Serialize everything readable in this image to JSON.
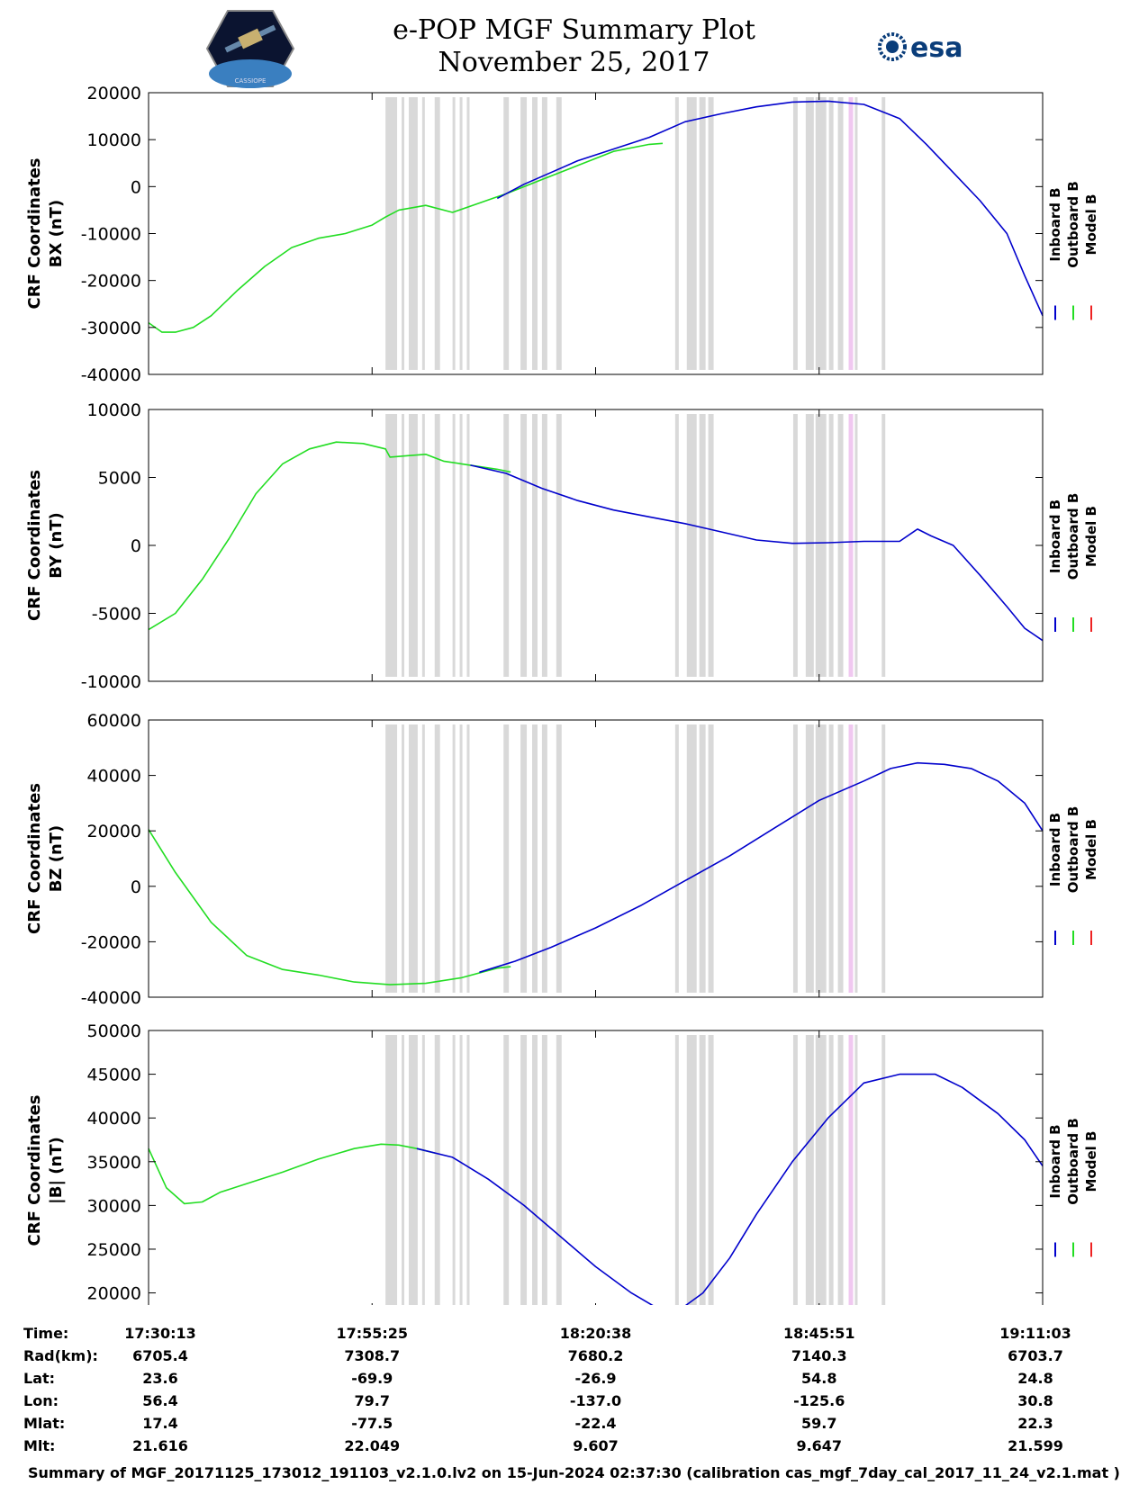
{
  "header": {
    "title_line1": "e-POP MGF Summary Plot",
    "title_line2": "November 25, 2017",
    "left_logo_text": "CASSIOPE",
    "right_logo_text": "esa"
  },
  "colors": {
    "inboard": "#0000cc",
    "outboard": "#22dd22",
    "model": "#ee2222",
    "gap_band": "#d9d9d9",
    "pink_band": "#f0c8f0"
  },
  "legend": [
    "Inboard B",
    "Outboard B",
    "Model B"
  ],
  "chart_data": [
    {
      "type": "line",
      "ylabel_line1": "CRF Coordinates",
      "ylabel_line2": "BX (nT)",
      "ylim": [
        -40000,
        20000
      ],
      "yticks": [
        20000,
        10000,
        0,
        -10000,
        -20000,
        -30000,
        -40000
      ],
      "xlim": [
        0,
        100
      ],
      "series": [
        {
          "name": "Outboard B",
          "x": [
            0,
            1.5,
            3,
            5,
            7,
            10,
            13,
            16,
            19,
            22,
            25,
            26.5,
            28,
            31,
            34,
            37,
            38.5,
            40,
            44,
            48,
            52,
            56,
            57.5
          ],
          "values": [
            -29000,
            -31000,
            -31000,
            -30000,
            -27500,
            -22000,
            -17000,
            -13000,
            -11000,
            -10000,
            -8200,
            -6500,
            -5000,
            -4000,
            -5500,
            -3500,
            -2500,
            -1500,
            1500,
            4500,
            7500,
            9000,
            9200
          ]
        },
        {
          "name": "Inboard B",
          "x": [
            39,
            42,
            45,
            48,
            52,
            56,
            60,
            64,
            68,
            72,
            76,
            80,
            84,
            87,
            90,
            93,
            96,
            98,
            100
          ],
          "values": [
            -2500,
            500,
            3000,
            5500,
            8000,
            10500,
            13800,
            15500,
            17000,
            18000,
            18200,
            17500,
            14500,
            9000,
            3000,
            -3000,
            -10000,
            -19000,
            -27500
          ]
        },
        {
          "name": "Model B",
          "x": [],
          "values": []
        }
      ]
    },
    {
      "type": "line",
      "ylabel_line1": "CRF Coordinates",
      "ylabel_line2": "BY (nT)",
      "ylim": [
        -10000,
        10000
      ],
      "yticks": [
        10000,
        5000,
        0,
        -5000,
        -10000
      ],
      "xlim": [
        0,
        100
      ],
      "series": [
        {
          "name": "Outboard B",
          "x": [
            0,
            3,
            6,
            9,
            12,
            15,
            18,
            21,
            24,
            26.5,
            27,
            29,
            31,
            33,
            35,
            37,
            39,
            40.5
          ],
          "values": [
            -6200,
            -5000,
            -2500,
            500,
            3800,
            6000,
            7100,
            7600,
            7500,
            7100,
            6500,
            6600,
            6700,
            6200,
            6000,
            5800,
            5600,
            5400
          ]
        },
        {
          "name": "Inboard B",
          "x": [
            36,
            40,
            44,
            48,
            52,
            56,
            60,
            64,
            68,
            72,
            76,
            80,
            84,
            86,
            87.5,
            90,
            93,
            96,
            98,
            100
          ],
          "values": [
            5900,
            5300,
            4200,
            3300,
            2600,
            2100,
            1600,
            1000,
            400,
            150,
            200,
            300,
            300,
            1200,
            700,
            0,
            -2200,
            -4500,
            -6100,
            -7000
          ]
        },
        {
          "name": "Model B",
          "x": [],
          "values": []
        }
      ]
    },
    {
      "type": "line",
      "ylabel_line1": "CRF Coordinates",
      "ylabel_line2": "BZ (nT)",
      "ylim": [
        -40000,
        60000
      ],
      "yticks": [
        60000,
        40000,
        20000,
        0,
        -20000,
        -40000
      ],
      "xlim": [
        0,
        100
      ],
      "series": [
        {
          "name": "Outboard B",
          "x": [
            0,
            3,
            7,
            11,
            15,
            19,
            23,
            27,
            31,
            35,
            39,
            40.5
          ],
          "values": [
            20500,
            5000,
            -13000,
            -25000,
            -30000,
            -32000,
            -34500,
            -35500,
            -35000,
            -33000,
            -29500,
            -29000
          ]
        },
        {
          "name": "Inboard B",
          "x": [
            37,
            41,
            45,
            50,
            55,
            60,
            65,
            70,
            75,
            80,
            83,
            86,
            89,
            92,
            95,
            98,
            100
          ],
          "values": [
            -31000,
            -27000,
            -22000,
            -15000,
            -7000,
            2000,
            11000,
            21000,
            31000,
            38000,
            42500,
            44500,
            44000,
            42500,
            38000,
            30000,
            20000
          ]
        },
        {
          "name": "Model B",
          "x": [],
          "values": []
        }
      ]
    },
    {
      "type": "line",
      "ylabel_line1": "CRF Coordinates",
      "ylabel_line2": "|B| (nT)",
      "ylim": [
        18000,
        50000
      ],
      "yticks": [
        50000,
        45000,
        40000,
        35000,
        30000,
        25000,
        20000
      ],
      "xlim": [
        0,
        100
      ],
      "series": [
        {
          "name": "Outboard B",
          "x": [
            0,
            2,
            4,
            6,
            8,
            11,
            15,
            19,
            23,
            26,
            28,
            30,
            32
          ],
          "values": [
            36500,
            32000,
            30200,
            30400,
            31500,
            32500,
            33800,
            35300,
            36500,
            37000,
            36900,
            36500,
            36000
          ]
        },
        {
          "name": "Inboard B",
          "x": [
            30,
            34,
            38,
            42,
            46,
            50,
            54,
            57,
            60,
            62,
            65,
            68,
            72,
            76,
            80,
            84,
            88,
            91,
            95,
            98,
            100
          ],
          "values": [
            36500,
            35500,
            33000,
            30000,
            26500,
            23000,
            20000,
            18200,
            18500,
            20000,
            24000,
            29000,
            35000,
            40000,
            44000,
            45000,
            45000,
            43500,
            40500,
            37500,
            34500
          ]
        },
        {
          "name": "Model B",
          "x": [],
          "values": []
        }
      ]
    }
  ],
  "gap_bands": [
    [
      26.5,
      27.8
    ],
    [
      28.3,
      28.6
    ],
    [
      29.1,
      30.1
    ],
    [
      30.6,
      30.9
    ],
    [
      32.0,
      32.6
    ],
    [
      34.0,
      34.3
    ],
    [
      34.8,
      35.1
    ],
    [
      35.6,
      35.9
    ],
    [
      39.7,
      40.3
    ],
    [
      41.6,
      42.3
    ],
    [
      42.9,
      43.5
    ],
    [
      44.0,
      44.6
    ],
    [
      45.6,
      46.2
    ],
    [
      58.9,
      59.3
    ],
    [
      60.2,
      61.3
    ],
    [
      61.6,
      62.3
    ],
    [
      62.6,
      63.2
    ],
    [
      72.1,
      72.6
    ],
    [
      73.5,
      74.3
    ],
    [
      74.6,
      75.8
    ],
    [
      76.1,
      76.6
    ],
    [
      77.1,
      77.7
    ],
    [
      82.0,
      82.4
    ],
    [
      74.0,
      74.4
    ],
    [
      79.0,
      79.3
    ]
  ],
  "pink_bands": [
    [
      78.3,
      78.8
    ]
  ],
  "info": {
    "labels": [
      "Time:",
      "Rad(km):",
      "Lat:",
      "Lon:",
      "Mlat:",
      "Mlt:"
    ],
    "columns": [
      [
        "17:30:13",
        "6705.4",
        "23.6",
        "56.4",
        "17.4",
        "21.616"
      ],
      [
        "17:55:25",
        "7308.7",
        "-69.9",
        "79.7",
        "-77.5",
        "22.049"
      ],
      [
        "18:20:38",
        "7680.2",
        "-26.9",
        "-137.0",
        "-22.4",
        "9.607"
      ],
      [
        "18:45:51",
        "7140.3",
        "54.8",
        "-125.6",
        "59.7",
        "9.647"
      ],
      [
        "19:11:03",
        "6703.7",
        "24.8",
        "30.8",
        "22.3",
        "21.599"
      ]
    ]
  },
  "footer": "Summary of MGF_20171125_173012_191103_v2.1.0.lv2 on 15-Jun-2024 02:37:30 (calibration cas_mgf_7day_cal_2017_11_24_v2.1.mat )"
}
